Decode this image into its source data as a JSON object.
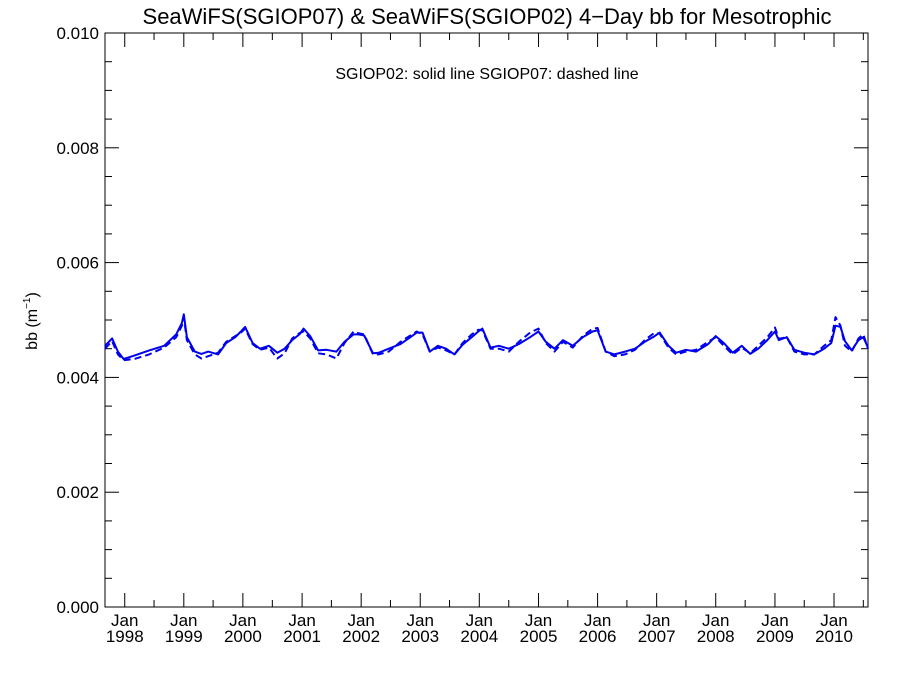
{
  "chart_data": {
    "type": "line",
    "title": "SeaWiFS(SGIOP07) & SeaWiFS(SGIOP02) 4−Day bb for Mesotrophic",
    "ylabel_text": "bb (m",
    "ylabel_sup": "−1",
    "ylabel_close": ")",
    "xlabel": "",
    "annotation": "SGIOP02: solid line   SGIOP07: dashed line",
    "xlim": [
      "1997-09-01",
      "2010-07-30"
    ],
    "ylim": [
      0.0,
      0.01
    ],
    "yticks": [
      "0.000",
      "0.002",
      "0.004",
      "0.006",
      "0.008",
      "0.010"
    ],
    "xticks": [
      {
        "date": "1998-01-01",
        "line1": "Jan",
        "line2": "1998"
      },
      {
        "date": "1999-01-01",
        "line1": "Jan",
        "line2": "1999"
      },
      {
        "date": "2000-01-01",
        "line1": "Jan",
        "line2": "2000"
      },
      {
        "date": "2001-01-01",
        "line1": "Jan",
        "line2": "2001"
      },
      {
        "date": "2002-01-01",
        "line1": "Jan",
        "line2": "2002"
      },
      {
        "date": "2003-01-01",
        "line1": "Jan",
        "line2": "2003"
      },
      {
        "date": "2004-01-01",
        "line1": "Jan",
        "line2": "2004"
      },
      {
        "date": "2005-01-01",
        "line1": "Jan",
        "line2": "2005"
      },
      {
        "date": "2006-01-01",
        "line1": "Jan",
        "line2": "2006"
      },
      {
        "date": "2007-01-01",
        "line1": "Jan",
        "line2": "2007"
      },
      {
        "date": "2008-01-01",
        "line1": "Jan",
        "line2": "2008"
      },
      {
        "date": "2009-01-01",
        "line1": "Jan",
        "line2": "2009"
      },
      {
        "date": "2010-01-01",
        "line1": "Jan",
        "line2": "2010"
      }
    ],
    "line_color": "#0000ee",
    "grid": false,
    "series": [
      {
        "style": "solid",
        "x": [
          "1997-09-01",
          "1997-10-15",
          "1997-11-20",
          "1997-12-25",
          "1998-03-01",
          "1998-06-01",
          "1998-09-01",
          "1998-11-15",
          "1998-12-20",
          "1999-01-01",
          "1999-01-20",
          "1999-03-10",
          "1999-04-20",
          "1999-06-01",
          "1999-08-01",
          "1999-09-20",
          "1999-11-15",
          "1999-12-20",
          "2000-01-15",
          "2000-03-01",
          "2000-04-15",
          "2000-06-10",
          "2000-08-01",
          "2000-09-15",
          "2000-11-01",
          "2000-12-15",
          "2001-01-10",
          "2001-02-20",
          "2001-04-10",
          "2001-06-01",
          "2001-08-01",
          "2001-09-20",
          "2001-11-15",
          "2001-12-15",
          "2002-01-20",
          "2002-03-15",
          "2002-04-20",
          "2002-06-20",
          "2002-09-01",
          "2002-11-01",
          "2002-12-10",
          "2003-01-15",
          "2003-03-01",
          "2003-04-20",
          "2003-06-10",
          "2003-08-01",
          "2003-09-20",
          "2003-11-15",
          "2003-12-25",
          "2004-01-20",
          "2004-03-10",
          "2004-05-01",
          "2004-07-01",
          "2004-09-01",
          "2004-11-10",
          "2005-01-01",
          "2005-02-15",
          "2005-04-10",
          "2005-06-01",
          "2005-08-01",
          "2005-10-01",
          "2005-12-01",
          "2006-01-01",
          "2006-02-20",
          "2006-04-15",
          "2006-06-20",
          "2006-08-20",
          "2006-10-20",
          "2006-12-20",
          "2007-01-20",
          "2007-03-15",
          "2007-05-01",
          "2007-07-01",
          "2007-09-01",
          "2007-11-15",
          "2008-01-01",
          "2008-02-20",
          "2008-04-15",
          "2008-06-10",
          "2008-08-01",
          "2008-09-20",
          "2008-11-15",
          "2009-01-01",
          "2009-01-25",
          "2009-03-15",
          "2009-05-01",
          "2009-07-01",
          "2009-09-01",
          "2009-11-01",
          "2009-12-15",
          "2010-01-10",
          "2010-02-10",
          "2010-03-10",
          "2010-04-20",
          "2010-06-01",
          "2010-07-01",
          "2010-07-30"
        ],
        "y": [
          0.00455,
          0.00468,
          0.00445,
          0.00432,
          0.00438,
          0.00447,
          0.00455,
          0.00475,
          0.00495,
          0.0051,
          0.0047,
          0.00445,
          0.00441,
          0.00445,
          0.0044,
          0.0046,
          0.0047,
          0.0048,
          0.00488,
          0.0046,
          0.0045,
          0.00455,
          0.00443,
          0.0045,
          0.00465,
          0.00475,
          0.00485,
          0.00472,
          0.00447,
          0.00448,
          0.00445,
          0.00462,
          0.00475,
          0.00475,
          0.00473,
          0.00442,
          0.00443,
          0.0045,
          0.00458,
          0.0047,
          0.00478,
          0.00478,
          0.00445,
          0.00455,
          0.0045,
          0.0044,
          0.00457,
          0.0047,
          0.0048,
          0.00485,
          0.00452,
          0.00455,
          0.0045,
          0.00458,
          0.0047,
          0.0048,
          0.00462,
          0.0045,
          0.00465,
          0.00455,
          0.0047,
          0.0048,
          0.00482,
          0.00445,
          0.0044,
          0.00445,
          0.0045,
          0.00462,
          0.00472,
          0.00478,
          0.00455,
          0.00443,
          0.00448,
          0.00445,
          0.00458,
          0.00472,
          0.0046,
          0.00443,
          0.00455,
          0.00441,
          0.0045,
          0.00465,
          0.0048,
          0.00465,
          0.0047,
          0.00448,
          0.00443,
          0.0044,
          0.0045,
          0.0046,
          0.0049,
          0.00488,
          0.00463,
          0.00447,
          0.00465,
          0.0047,
          0.00452
        ]
      },
      {
        "style": "dashed",
        "x": [
          "1997-09-01",
          "1997-10-15",
          "1997-11-20",
          "1997-12-25",
          "1998-03-01",
          "1998-06-01",
          "1998-09-01",
          "1998-11-15",
          "1998-12-20",
          "1999-01-01",
          "1999-01-20",
          "1999-03-10",
          "1999-04-20",
          "1999-06-01",
          "1999-08-01",
          "1999-09-20",
          "1999-11-15",
          "1999-12-20",
          "2000-01-15",
          "2000-03-01",
          "2000-04-15",
          "2000-06-10",
          "2000-08-01",
          "2000-09-15",
          "2000-11-01",
          "2000-12-15",
          "2001-01-10",
          "2001-02-20",
          "2001-04-10",
          "2001-06-01",
          "2001-08-01",
          "2001-09-20",
          "2001-11-15",
          "2001-12-15",
          "2002-01-20",
          "2002-03-15",
          "2002-04-20",
          "2002-06-20",
          "2002-09-01",
          "2002-11-01",
          "2002-12-10",
          "2003-01-15",
          "2003-03-01",
          "2003-04-20",
          "2003-06-10",
          "2003-08-01",
          "2003-09-20",
          "2003-11-15",
          "2003-12-25",
          "2004-01-20",
          "2004-03-10",
          "2004-05-01",
          "2004-07-01",
          "2004-09-01",
          "2004-11-10",
          "2005-01-01",
          "2005-02-15",
          "2005-04-10",
          "2005-06-01",
          "2005-08-01",
          "2005-10-01",
          "2005-12-01",
          "2006-01-01",
          "2006-02-20",
          "2006-04-15",
          "2006-06-20",
          "2006-08-20",
          "2006-10-20",
          "2006-12-20",
          "2007-01-20",
          "2007-03-15",
          "2007-05-01",
          "2007-07-01",
          "2007-09-01",
          "2007-11-15",
          "2008-01-01",
          "2008-02-20",
          "2008-04-15",
          "2008-06-10",
          "2008-08-01",
          "2008-09-20",
          "2008-11-15",
          "2009-01-01",
          "2009-01-25",
          "2009-03-15",
          "2009-05-01",
          "2009-07-01",
          "2009-09-01",
          "2009-11-01",
          "2009-12-15",
          "2010-01-10",
          "2010-02-10",
          "2010-03-10",
          "2010-04-20",
          "2010-06-01",
          "2010-07-01",
          "2010-07-30"
        ],
        "y": [
          0.0045,
          0.00463,
          0.0044,
          0.0043,
          0.00432,
          0.0044,
          0.00452,
          0.0047,
          0.0049,
          0.00505,
          0.00465,
          0.0044,
          0.00433,
          0.00437,
          0.00443,
          0.00462,
          0.00472,
          0.00478,
          0.00485,
          0.00458,
          0.00448,
          0.00452,
          0.00433,
          0.00442,
          0.00468,
          0.00477,
          0.0048,
          0.00468,
          0.00442,
          0.0044,
          0.00433,
          0.0046,
          0.0048,
          0.00477,
          0.00475,
          0.0044,
          0.0044,
          0.00445,
          0.00462,
          0.00473,
          0.0048,
          0.00475,
          0.00445,
          0.00452,
          0.00447,
          0.0044,
          0.0046,
          0.00475,
          0.00483,
          0.00482,
          0.0045,
          0.0045,
          0.00445,
          0.00462,
          0.00478,
          0.00485,
          0.0046,
          0.00445,
          0.00462,
          0.00452,
          0.00472,
          0.00485,
          0.00486,
          0.00445,
          0.00437,
          0.0044,
          0.00448,
          0.00465,
          0.00478,
          0.00476,
          0.00452,
          0.0044,
          0.00445,
          0.00448,
          0.00462,
          0.0047,
          0.00455,
          0.0044,
          0.00452,
          0.00442,
          0.00455,
          0.0047,
          0.00487,
          0.00467,
          0.0047,
          0.00445,
          0.0044,
          0.0044,
          0.00455,
          0.00465,
          0.00505,
          0.0049,
          0.00455,
          0.00445,
          0.00468,
          0.00475,
          0.0045
        ]
      }
    ]
  }
}
